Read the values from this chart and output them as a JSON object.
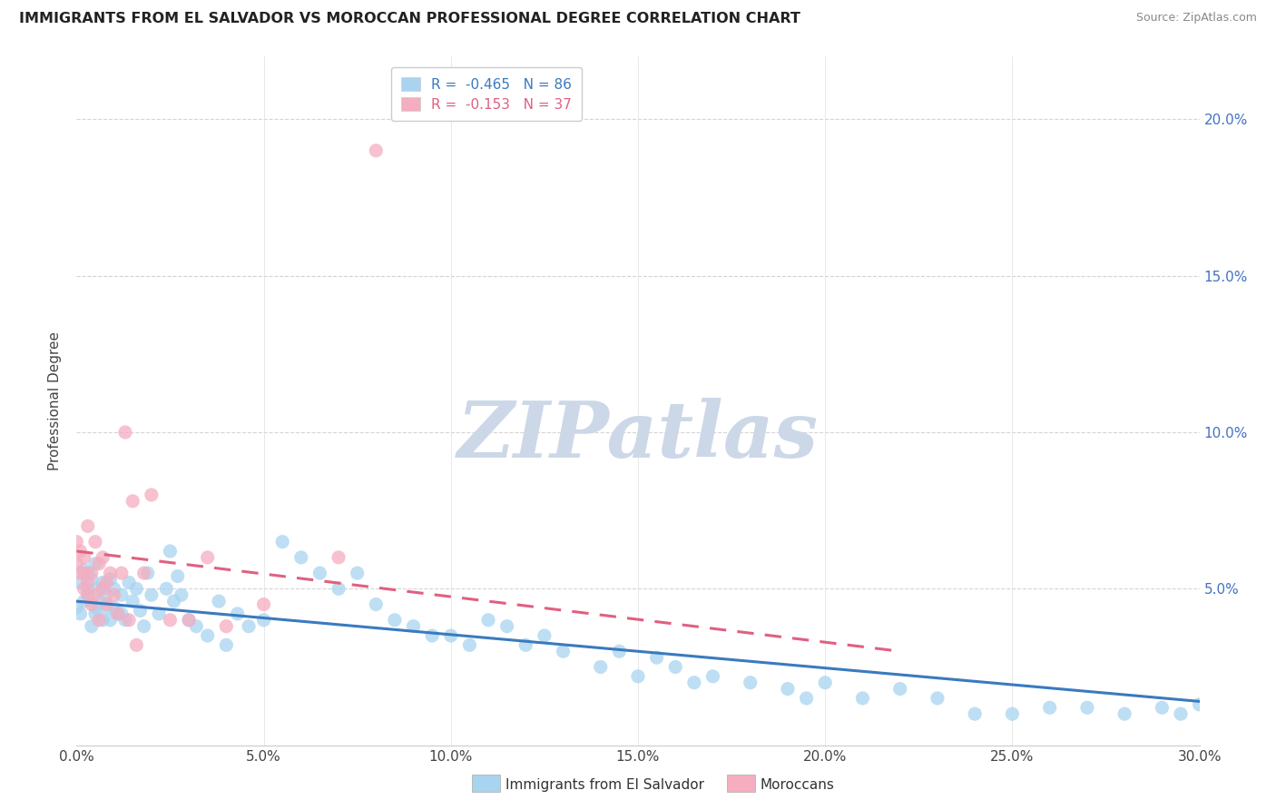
{
  "title": "IMMIGRANTS FROM EL SALVADOR VS MOROCCAN PROFESSIONAL DEGREE CORRELATION CHART",
  "source": "Source: ZipAtlas.com",
  "ylabel": "Professional Degree",
  "ytick_labels_right": [
    "5.0%",
    "10.0%",
    "15.0%",
    "20.0%"
  ],
  "ytick_values": [
    0.05,
    0.1,
    0.15,
    0.2
  ],
  "xtick_labels": [
    "0.0%",
    "5.0%",
    "10.0%",
    "15.0%",
    "20.0%",
    "25.0%",
    "30.0%"
  ],
  "xtick_values": [
    0.0,
    0.05,
    0.1,
    0.15,
    0.2,
    0.25,
    0.3
  ],
  "corr_blue": {
    "R": -0.465,
    "N": 86
  },
  "corr_pink": {
    "R": -0.153,
    "N": 37
  },
  "blue_scatter_color": "#a8d4f0",
  "pink_scatter_color": "#f5adc0",
  "trend_blue_color": "#3a7abf",
  "trend_pink_color": "#e06080",
  "legend_blue_color": "#a8d4f0",
  "legend_pink_color": "#f5adc0",
  "legend_text_blue": "#3a7abf",
  "legend_text_pink": "#e06080",
  "watermark": "ZIPatlas",
  "watermark_color": "#ccd8e8",
  "background_color": "#ffffff",
  "xlim": [
    0.0,
    0.3
  ],
  "ylim": [
    0.0,
    0.22
  ],
  "grid_color": "#d0d0d0",
  "bottom_legend": [
    {
      "label": "Immigrants from El Salvador",
      "color": "#a8d4f0"
    },
    {
      "label": "Moroccans",
      "color": "#f5adc0"
    }
  ],
  "blue_x": [
    0.0,
    0.001,
    0.001,
    0.002,
    0.002,
    0.003,
    0.003,
    0.003,
    0.004,
    0.004,
    0.005,
    0.005,
    0.005,
    0.006,
    0.006,
    0.007,
    0.007,
    0.008,
    0.008,
    0.009,
    0.009,
    0.01,
    0.01,
    0.011,
    0.012,
    0.012,
    0.013,
    0.014,
    0.015,
    0.016,
    0.017,
    0.018,
    0.019,
    0.02,
    0.022,
    0.024,
    0.025,
    0.026,
    0.027,
    0.028,
    0.03,
    0.032,
    0.035,
    0.038,
    0.04,
    0.043,
    0.046,
    0.05,
    0.055,
    0.06,
    0.065,
    0.07,
    0.075,
    0.08,
    0.085,
    0.09,
    0.095,
    0.1,
    0.105,
    0.11,
    0.115,
    0.12,
    0.125,
    0.13,
    0.14,
    0.145,
    0.15,
    0.155,
    0.16,
    0.165,
    0.17,
    0.18,
    0.19,
    0.195,
    0.2,
    0.21,
    0.22,
    0.23,
    0.24,
    0.25,
    0.26,
    0.27,
    0.28,
    0.29,
    0.295,
    0.3
  ],
  "blue_y": [
    0.044,
    0.052,
    0.042,
    0.046,
    0.056,
    0.05,
    0.055,
    0.048,
    0.038,
    0.053,
    0.044,
    0.058,
    0.042,
    0.05,
    0.046,
    0.052,
    0.04,
    0.044,
    0.048,
    0.04,
    0.053,
    0.044,
    0.05,
    0.042,
    0.048,
    0.042,
    0.04,
    0.052,
    0.046,
    0.05,
    0.043,
    0.038,
    0.055,
    0.048,
    0.042,
    0.05,
    0.062,
    0.046,
    0.054,
    0.048,
    0.04,
    0.038,
    0.035,
    0.046,
    0.032,
    0.042,
    0.038,
    0.04,
    0.065,
    0.06,
    0.055,
    0.05,
    0.055,
    0.045,
    0.04,
    0.038,
    0.035,
    0.035,
    0.032,
    0.04,
    0.038,
    0.032,
    0.035,
    0.03,
    0.025,
    0.03,
    0.022,
    0.028,
    0.025,
    0.02,
    0.022,
    0.02,
    0.018,
    0.015,
    0.02,
    0.015,
    0.018,
    0.015,
    0.01,
    0.01,
    0.012,
    0.012,
    0.01,
    0.012,
    0.01,
    0.013
  ],
  "pink_x": [
    0.0,
    0.0,
    0.001,
    0.001,
    0.002,
    0.002,
    0.002,
    0.003,
    0.003,
    0.003,
    0.004,
    0.004,
    0.005,
    0.005,
    0.006,
    0.006,
    0.007,
    0.007,
    0.008,
    0.008,
    0.009,
    0.01,
    0.011,
    0.012,
    0.013,
    0.014,
    0.015,
    0.016,
    0.018,
    0.02,
    0.025,
    0.03,
    0.035,
    0.04,
    0.05,
    0.07,
    0.08
  ],
  "pink_y": [
    0.065,
    0.058,
    0.062,
    0.055,
    0.05,
    0.06,
    0.055,
    0.048,
    0.052,
    0.07,
    0.045,
    0.055,
    0.048,
    0.065,
    0.04,
    0.058,
    0.05,
    0.06,
    0.045,
    0.052,
    0.055,
    0.048,
    0.042,
    0.055,
    0.1,
    0.04,
    0.078,
    0.032,
    0.055,
    0.08,
    0.04,
    0.04,
    0.06,
    0.038,
    0.045,
    0.06,
    0.19
  ]
}
